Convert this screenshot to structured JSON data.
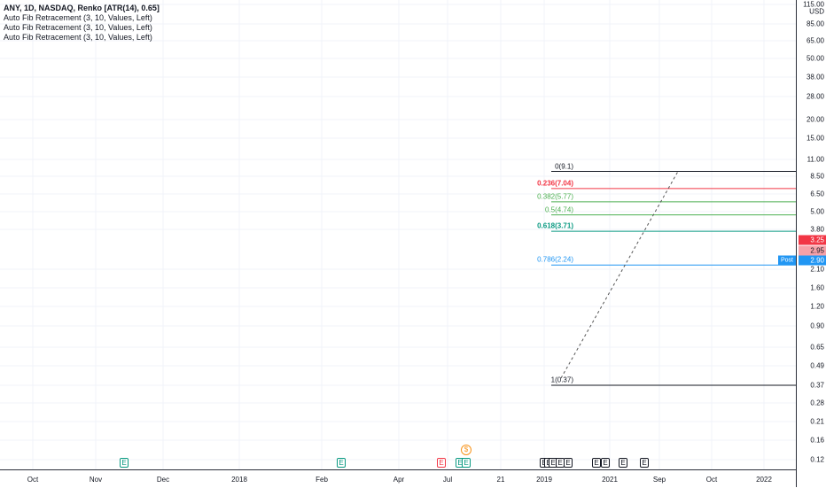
{
  "legend": {
    "title": "ANY, 1D, NASDAQ, Renko [ATR(14), 0.65]",
    "indicators": [
      "Auto Fib Retracement (3, 10, Values, Left)",
      "Auto Fib Retracement (3, 10, Values, Left)",
      "Auto Fib Retracement (3, 10, Values, Left)"
    ]
  },
  "price_axis": {
    "currency_top": "115.00",
    "currency_label": "USD",
    "labels": [
      "85.00",
      "65.00",
      "50.00",
      "38.00",
      "28.00",
      "20.00",
      "15.00",
      "11.00",
      "8.50",
      "6.50",
      "5.00",
      "3.80",
      "2.10",
      "1.60",
      "1.20",
      "0.90",
      "0.65",
      "0.49",
      "0.37",
      "0.28",
      "0.21",
      "0.16",
      "0.12"
    ],
    "badges": [
      {
        "value": "3.25",
        "color": "#f23645"
      },
      {
        "value": "2.95",
        "color": "#f7a1a8",
        "text_color": "#131722"
      },
      {
        "value": "2.90",
        "color": "#2196f3"
      }
    ],
    "post_label": "Post"
  },
  "time_axis": {
    "labels": [
      "Oct",
      "Nov",
      "Dec",
      "2018",
      "Feb",
      "Apr",
      "Jul",
      "21",
      "2019",
      "2021",
      "Sep",
      "Oct",
      "2022"
    ]
  },
  "fib_levels": [
    {
      "label": "0(9.1)",
      "price": 9.1,
      "color": "#131722"
    },
    {
      "label": "0.236(7.04)",
      "price": 7.04,
      "color": "#f23645"
    },
    {
      "label": "0.382(5.77)",
      "price": 5.77,
      "color": "#4caf50"
    },
    {
      "label": "0.5(4.74)",
      "price": 4.74,
      "color": "#4caf50"
    },
    {
      "label": "0.618(3.71)",
      "price": 3.71,
      "color": "#089981"
    },
    {
      "label": "0.786(2.24)",
      "price": 2.24,
      "color": "#2196f3"
    },
    {
      "label": "1(0.37)",
      "price": 0.37,
      "color": "#131722"
    }
  ],
  "events": [
    {
      "glyph": "E",
      "style": "green"
    },
    {
      "glyph": "E",
      "style": "green"
    },
    {
      "glyph": "E",
      "style": "red"
    },
    {
      "glyph": "E",
      "style": "green"
    },
    {
      "glyph": "E",
      "style": "green"
    },
    {
      "glyph": "E",
      "style": "normal"
    },
    {
      "glyph": "E",
      "style": "normal"
    },
    {
      "glyph": "E",
      "style": "normal"
    },
    {
      "glyph": "E",
      "style": "normal"
    },
    {
      "glyph": "E",
      "style": "normal"
    },
    {
      "glyph": "E",
      "style": "normal"
    },
    {
      "glyph": "E",
      "style": "normal"
    },
    {
      "glyph": "E",
      "style": "normal"
    },
    {
      "glyph": "E",
      "style": "normal"
    }
  ],
  "dividend": {
    "glyph": "$"
  }
}
